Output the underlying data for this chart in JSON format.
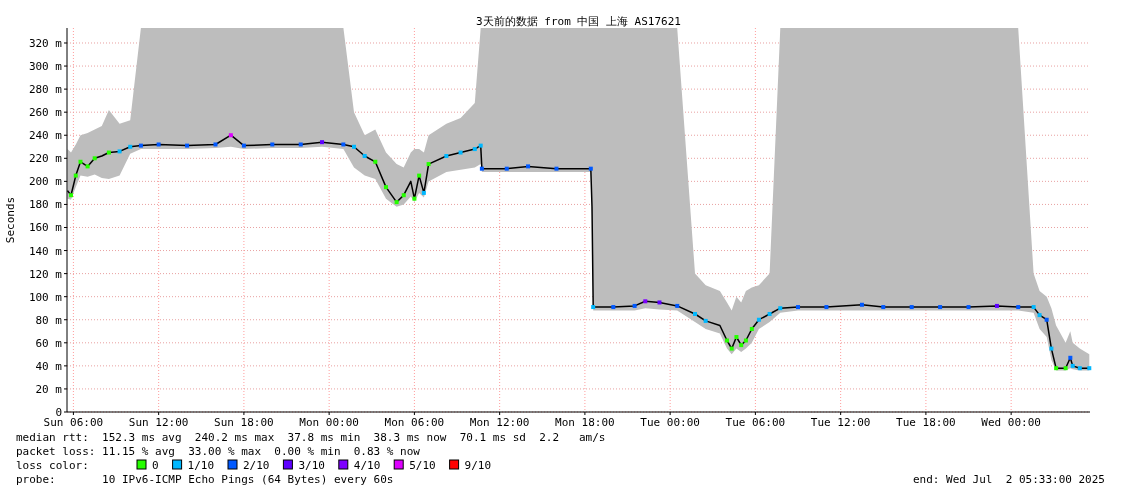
{
  "chart_data": {
    "type": "line",
    "title": "3天前的数据 from 中国 上海 AS17621",
    "ylabel": "Seconds",
    "legend_title": "loss color:",
    "legend": "bottom",
    "grid": true,
    "xlim": [
      "2025-06-29T05:33",
      "2025-07-02T05:33"
    ],
    "xticks": [
      {
        "value": "2025-06-29T06:00",
        "label": "Sun 06:00"
      },
      {
        "value": "2025-06-29T12:00",
        "label": "Sun 12:00"
      },
      {
        "value": "2025-06-29T18:00",
        "label": "Sun 18:00"
      },
      {
        "value": "2025-06-30T00:00",
        "label": "Mon 00:00"
      },
      {
        "value": "2025-06-30T06:00",
        "label": "Mon 06:00"
      },
      {
        "value": "2025-06-30T12:00",
        "label": "Mon 12:00"
      },
      {
        "value": "2025-06-30T18:00",
        "label": "Mon 18:00"
      },
      {
        "value": "2025-07-01T00:00",
        "label": "Tue 00:00"
      },
      {
        "value": "2025-07-01T06:00",
        "label": "Tue 06:00"
      },
      {
        "value": "2025-07-01T12:00",
        "label": "Tue 12:00"
      },
      {
        "value": "2025-07-01T18:00",
        "label": "Tue 18:00"
      },
      {
        "value": "2025-07-02T00:00",
        "label": "Wed 00:00"
      }
    ],
    "ylim": [
      0,
      333
    ],
    "yticks": [
      {
        "value": 0,
        "label": "0"
      },
      {
        "value": 20,
        "label": "20 m"
      },
      {
        "value": 40,
        "label": "40 m"
      },
      {
        "value": 60,
        "label": "60 m"
      },
      {
        "value": 80,
        "label": "80 m"
      },
      {
        "value": 100,
        "label": "100 m"
      },
      {
        "value": 120,
        "label": "120 m"
      },
      {
        "value": 140,
        "label": "140 m"
      },
      {
        "value": 160,
        "label": "160 m"
      },
      {
        "value": 180,
        "label": "180 m"
      },
      {
        "value": 200,
        "label": "200 m"
      },
      {
        "value": 220,
        "label": "220 m"
      },
      {
        "value": 240,
        "label": "240 m"
      },
      {
        "value": 260,
        "label": "260 m"
      },
      {
        "value": 280,
        "label": "280 m"
      },
      {
        "value": 300,
        "label": "300 m"
      },
      {
        "value": 320,
        "label": "320 m"
      }
    ],
    "x": [
      "2025-06-29T05:35",
      "2025-06-29T05:50",
      "2025-06-29T06:10",
      "2025-06-29T06:30",
      "2025-06-29T07:00",
      "2025-06-29T07:30",
      "2025-06-29T08:00",
      "2025-06-29T08:30",
      "2025-06-29T09:15",
      "2025-06-29T10:00",
      "2025-06-29T10:45",
      "2025-06-29T12:00",
      "2025-06-29T14:00",
      "2025-06-29T16:00",
      "2025-06-29T17:05",
      "2025-06-29T18:00",
      "2025-06-29T20:00",
      "2025-06-29T22:00",
      "2025-06-29T23:30",
      "2025-06-30T01:00",
      "2025-06-30T01:45",
      "2025-06-30T02:30",
      "2025-06-30T03:15",
      "2025-06-30T04:00",
      "2025-06-30T04:45",
      "2025-06-30T05:15",
      "2025-06-30T05:45",
      "2025-06-30T06:00",
      "2025-06-30T06:20",
      "2025-06-30T06:40",
      "2025-06-30T07:00",
      "2025-06-30T08:15",
      "2025-06-30T09:15",
      "2025-06-30T10:15",
      "2025-06-30T10:40",
      "2025-06-30T10:45",
      "2025-06-30T12:30",
      "2025-06-30T14:00",
      "2025-06-30T16:00",
      "2025-06-30T18:25",
      "2025-06-30T18:30",
      "2025-06-30T18:35",
      "2025-06-30T20:00",
      "2025-06-30T21:30",
      "2025-06-30T22:15",
      "2025-06-30T23:15",
      "2025-07-01T00:30",
      "2025-07-01T01:45",
      "2025-07-01T02:30",
      "2025-07-01T03:30",
      "2025-07-01T04:00",
      "2025-07-01T04:20",
      "2025-07-01T04:40",
      "2025-07-01T05:00",
      "2025-07-01T05:20",
      "2025-07-01T05:45",
      "2025-07-01T06:15",
      "2025-07-01T07:00",
      "2025-07-01T07:45",
      "2025-07-01T09:00",
      "2025-07-01T11:00",
      "2025-07-01T13:30",
      "2025-07-01T15:00",
      "2025-07-01T17:00",
      "2025-07-01T19:00",
      "2025-07-01T21:00",
      "2025-07-01T23:00",
      "2025-07-02T00:30",
      "2025-07-02T01:35",
      "2025-07-02T02:00",
      "2025-07-02T02:30",
      "2025-07-02T02:50",
      "2025-07-02T03:10",
      "2025-07-02T03:50",
      "2025-07-02T04:10",
      "2025-07-02T04:20",
      "2025-07-02T04:50",
      "2025-07-02T05:30"
    ],
    "series": [
      {
        "color": "#000000",
        "values": [
          192,
          188,
          205,
          217,
          213,
          220,
          222,
          225,
          226,
          230,
          231,
          232,
          231,
          232,
          240,
          231,
          232,
          232,
          234,
          232,
          230,
          222,
          217,
          195,
          182,
          188,
          200,
          185,
          205,
          190,
          215,
          222,
          225,
          228,
          231,
          211,
          211,
          213,
          211,
          211,
          178,
          91,
          91,
          92,
          96,
          95,
          92,
          85,
          79,
          75,
          62,
          55,
          65,
          58,
          62,
          72,
          80,
          85,
          90,
          91,
          91,
          93,
          91,
          91,
          91,
          91,
          92,
          91,
          91,
          84,
          80,
          55,
          38,
          38,
          47,
          40,
          38,
          38
        ],
        "lower": [
          185,
          184,
          195,
          205,
          204,
          206,
          203,
          202,
          205,
          224,
          228,
          228,
          228,
          229,
          230,
          228,
          229,
          229,
          230,
          228,
          212,
          205,
          202,
          185,
          178,
          180,
          187,
          182,
          190,
          186,
          200,
          208,
          210,
          212,
          215,
          208,
          208,
          208,
          208,
          208,
          170,
          88,
          88,
          88,
          90,
          89,
          88,
          78,
          72,
          68,
          55,
          50,
          55,
          52,
          55,
          60,
          72,
          78,
          86,
          88,
          88,
          88,
          88,
          88,
          88,
          88,
          88,
          88,
          86,
          72,
          65,
          45,
          36,
          36,
          38,
          37,
          36,
          36
        ],
        "upper": [
          228,
          225,
          232,
          240,
          242,
          245,
          248,
          262,
          250,
          253,
          333,
          333,
          333,
          333,
          333,
          333,
          333,
          333,
          333,
          333,
          260,
          240,
          245,
          225,
          215,
          212,
          225,
          228,
          228,
          225,
          240,
          250,
          255,
          268,
          333,
          333,
          333,
          333,
          333,
          333,
          333,
          333,
          333,
          333,
          333,
          333,
          333,
          120,
          110,
          105,
          95,
          88,
          100,
          95,
          105,
          108,
          110,
          120,
          333,
          333,
          333,
          333,
          333,
          333,
          333,
          333,
          333,
          333,
          120,
          105,
          100,
          90,
          75,
          60,
          70,
          60,
          55,
          50
        ]
      },
      {
        "name": "0",
        "type": "scatter",
        "marker": "square",
        "color": "#26ff00",
        "x": [
          "2025-06-29T05:50",
          "2025-06-29T06:10",
          "2025-06-29T06:30",
          "2025-06-29T07:00",
          "2025-06-29T07:30",
          "2025-06-29T08:30",
          "2025-06-30T03:15",
          "2025-06-30T04:00",
          "2025-06-30T04:45",
          "2025-06-30T05:15",
          "2025-06-30T06:00",
          "2025-06-30T06:20",
          "2025-06-30T07:00",
          "2025-07-01T04:00",
          "2025-07-01T04:20",
          "2025-07-01T04:40",
          "2025-07-01T05:00",
          "2025-07-01T05:20",
          "2025-07-01T05:45",
          "2025-07-02T03:10",
          "2025-07-02T03:50"
        ],
        "values": [
          188,
          205,
          217,
          213,
          220,
          225,
          217,
          195,
          182,
          188,
          185,
          205,
          215,
          62,
          55,
          65,
          58,
          62,
          72,
          38,
          38
        ]
      },
      {
        "name": "1/10",
        "type": "scatter",
        "marker": "square",
        "color": "#00b8ff",
        "x": [
          "2025-06-29T09:15",
          "2025-06-29T10:00",
          "2025-06-30T01:45",
          "2025-06-30T02:30",
          "2025-06-30T06:40",
          "2025-06-30T08:15",
          "2025-06-30T09:15",
          "2025-06-30T10:15",
          "2025-06-30T10:40",
          "2025-06-30T18:35",
          "2025-07-01T01:45",
          "2025-07-01T02:30",
          "2025-07-01T06:15",
          "2025-07-01T07:00",
          "2025-07-01T07:45",
          "2025-07-02T01:35",
          "2025-07-02T02:00",
          "2025-07-02T02:50",
          "2025-07-02T04:20",
          "2025-07-02T04:50",
          "2025-07-02T05:30"
        ],
        "values": [
          226,
          230,
          230,
          222,
          190,
          222,
          225,
          228,
          231,
          91,
          85,
          79,
          80,
          85,
          90,
          91,
          84,
          55,
          40,
          38,
          38
        ]
      },
      {
        "name": "2/10",
        "type": "scatter",
        "marker": "square",
        "color": "#0059ff",
        "x": [
          "2025-06-29T10:45",
          "2025-06-29T12:00",
          "2025-06-29T14:00",
          "2025-06-29T16:00",
          "2025-06-29T18:00",
          "2025-06-29T20:00",
          "2025-06-29T22:00",
          "2025-06-30T01:00",
          "2025-06-30T10:45",
          "2025-06-30T12:30",
          "2025-06-30T14:00",
          "2025-06-30T16:00",
          "2025-06-30T18:25",
          "2025-06-30T20:00",
          "2025-06-30T21:30",
          "2025-07-01T00:30",
          "2025-07-01T09:00",
          "2025-07-01T11:00",
          "2025-07-01T13:30",
          "2025-07-01T15:00",
          "2025-07-01T17:00",
          "2025-07-01T19:00",
          "2025-07-01T21:00",
          "2025-07-02T00:30",
          "2025-07-02T02:30",
          "2025-07-02T04:10"
        ],
        "values": [
          231,
          232,
          231,
          232,
          231,
          232,
          232,
          232,
          211,
          211,
          213,
          211,
          211,
          91,
          92,
          92,
          91,
          91,
          93,
          91,
          91,
          91,
          91,
          91,
          80,
          47
        ]
      },
      {
        "name": "3/10",
        "type": "scatter",
        "marker": "square",
        "color": "#5e00ff",
        "x": [
          "2025-06-29T23:30",
          "2025-06-30T23:15",
          "2025-07-01T23:00"
        ],
        "values": [
          234,
          95,
          92
        ]
      },
      {
        "name": "4/10",
        "type": "scatter",
        "marker": "square",
        "color": "#7e00ff",
        "x": [
          "2025-06-30T22:15"
        ],
        "values": [
          96
        ]
      },
      {
        "name": "5/10",
        "type": "scatter",
        "marker": "square",
        "color": "#dd00ff",
        "x": [
          "2025-06-29T17:05"
        ],
        "values": [
          240
        ]
      },
      {
        "name": "9/10",
        "type": "scatter",
        "marker": "square",
        "color": "#ff0000",
        "values": [
          null,
          null,
          null,
          null,
          null,
          null,
          null,
          null,
          null,
          null,
          null,
          null,
          null,
          null,
          null,
          null,
          null,
          null,
          null,
          null,
          null,
          null,
          null,
          null,
          null,
          null,
          null,
          null,
          null,
          null,
          null,
          null,
          null,
          null,
          null,
          null,
          null,
          null,
          null,
          null,
          null,
          null,
          null,
          null,
          null,
          null,
          null,
          null,
          null,
          null,
          null,
          null,
          null,
          null,
          null,
          null,
          null,
          null,
          null,
          null,
          null,
          null,
          null,
          null,
          null,
          null,
          null,
          null,
          null,
          null,
          null,
          null,
          null,
          null,
          null,
          null,
          null,
          null
        ]
      }
    ],
    "annotations": [
      "median rtt:  152.3 ms avg  240.2 ms max  37.8 ms min  38.3 ms now  70.1 ms sd  2.2   am/s",
      "packet loss: 11.15 % avg  33.00 % max  0.00 % min  0.83 % now",
      "probe:       10 IPv6-ICMP Echo Pings (64 Bytes) every 60s",
      "end: Wed Jul  2 05:33:00 2025"
    ]
  }
}
